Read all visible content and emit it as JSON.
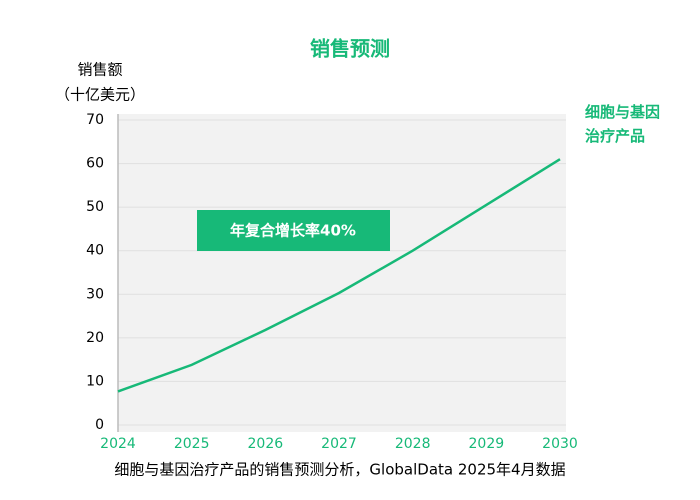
{
  "chart_data": {
    "type": "line",
    "title": "销售预测",
    "ylabel": [
      "销售额",
      "（十亿美元）"
    ],
    "annotation": "年复合增长率40%",
    "source": "细胞与基因治疗产品的销售预测分析，GlobalData 2025年4月数据",
    "x": [
      2024,
      2025,
      2026,
      2027,
      2028,
      2029,
      2030
    ],
    "series": [
      {
        "name": "细胞与基因治疗产品",
        "color": "#17b978",
        "values": [
          7.7,
          13.8,
          21.8,
          30.3,
          40,
          50.5,
          61
        ]
      }
    ],
    "xlim": [
      2024,
      2030
    ],
    "xticks": [
      2024,
      2025,
      2026,
      2027,
      2028,
      2029,
      2030
    ],
    "ylim": [
      0,
      70
    ],
    "yticks": [
      0,
      10,
      20,
      30,
      40,
      50,
      60,
      70
    ],
    "grid": true
  }
}
